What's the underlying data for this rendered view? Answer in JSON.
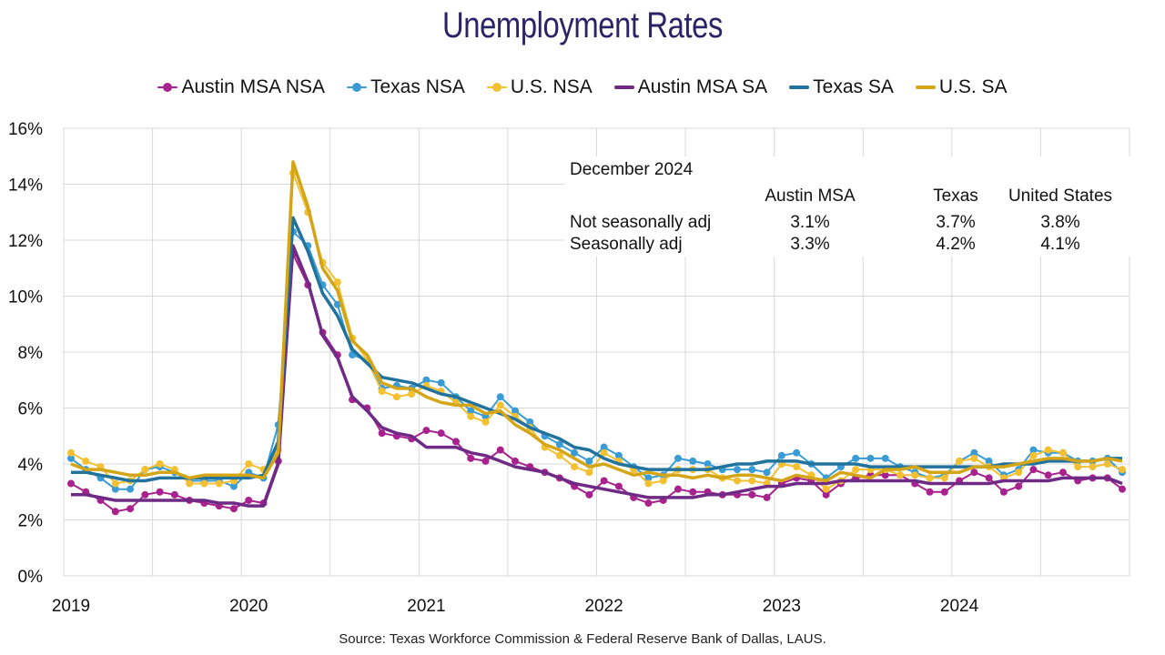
{
  "title": "Unemployment Rates",
  "source": "Source: Texas Workforce Commission & Federal Reserve Bank of Dallas, LAUS.",
  "summary_table": {
    "heading": "December 2024",
    "columns": [
      "Austin MSA",
      "Texas",
      "United States"
    ],
    "rows": [
      {
        "label": "Not seasonally adj",
        "values": [
          "3.1%",
          "3.7%",
          "3.8%"
        ]
      },
      {
        "label": "Seasonally adj",
        "values": [
          "3.3%",
          "4.2%",
          "4.1%"
        ]
      }
    ]
  },
  "chart_data": {
    "type": "line",
    "title": "Unemployment Rates",
    "xlabel": "",
    "ylabel": "",
    "ylim": [
      0,
      16
    ],
    "y_ticks": [
      "0%",
      "2%",
      "4%",
      "6%",
      "8%",
      "10%",
      "12%",
      "14%",
      "16%"
    ],
    "x_ticks": [
      "2019",
      "2020",
      "2021",
      "2022",
      "2023",
      "2024"
    ],
    "x_start": "2019-01",
    "x_end": "2024-12",
    "grid": true,
    "legend_position": "top",
    "series": [
      {
        "name": "Austin MSA NSA",
        "color": "#a8228e",
        "markers": true,
        "values": [
          3.3,
          3.0,
          2.7,
          2.3,
          2.4,
          2.9,
          3.0,
          2.9,
          2.7,
          2.6,
          2.5,
          2.4,
          2.7,
          2.6,
          4.1,
          11.5,
          10.4,
          8.7,
          7.9,
          6.3,
          6.0,
          5.1,
          5.0,
          4.9,
          5.2,
          5.1,
          4.8,
          4.2,
          4.1,
          4.5,
          4.1,
          3.9,
          3.7,
          3.5,
          3.2,
          2.9,
          3.4,
          3.2,
          2.8,
          2.6,
          2.7,
          3.1,
          3.0,
          3.0,
          2.9,
          2.9,
          2.9,
          2.8,
          3.3,
          3.5,
          3.4,
          2.9,
          3.3,
          3.5,
          3.6,
          3.6,
          3.6,
          3.3,
          3.0,
          3.0,
          3.4,
          3.7,
          3.5,
          3.0,
          3.2,
          3.8,
          3.6,
          3.7,
          3.4,
          3.5,
          3.5,
          3.1
        ]
      },
      {
        "name": "Texas NSA",
        "color": "#3a9bd5",
        "markers": true,
        "values": [
          4.2,
          3.8,
          3.5,
          3.1,
          3.1,
          3.8,
          3.9,
          3.7,
          3.4,
          3.4,
          3.4,
          3.2,
          3.7,
          3.5,
          5.4,
          12.3,
          11.8,
          10.4,
          9.7,
          7.9,
          7.7,
          6.7,
          6.8,
          6.7,
          7.0,
          6.9,
          6.4,
          5.9,
          5.7,
          6.4,
          5.9,
          5.5,
          5.0,
          4.7,
          4.4,
          4.1,
          4.6,
          4.3,
          3.9,
          3.5,
          3.6,
          4.2,
          4.1,
          4.0,
          3.8,
          3.8,
          3.8,
          3.7,
          4.3,
          4.4,
          4.0,
          3.5,
          3.9,
          4.2,
          4.2,
          4.2,
          3.9,
          3.7,
          3.5,
          3.6,
          4.1,
          4.4,
          4.1,
          3.6,
          3.8,
          4.5,
          4.4,
          4.4,
          4.1,
          4.1,
          4.2,
          3.7
        ]
      },
      {
        "name": "U.S. NSA",
        "color": "#f2c030",
        "markers": true,
        "values": [
          4.4,
          4.1,
          3.9,
          3.3,
          3.4,
          3.8,
          4.0,
          3.8,
          3.3,
          3.3,
          3.3,
          3.4,
          4.0,
          3.8,
          4.5,
          14.4,
          13.0,
          11.2,
          10.5,
          8.5,
          7.7,
          6.6,
          6.4,
          6.5,
          6.8,
          6.6,
          6.2,
          5.7,
          5.5,
          6.1,
          5.7,
          5.3,
          4.6,
          4.3,
          3.9,
          3.7,
          4.4,
          4.1,
          3.8,
          3.3,
          3.4,
          3.8,
          3.8,
          3.8,
          3.5,
          3.4,
          3.4,
          3.3,
          4.0,
          3.9,
          3.6,
          3.1,
          3.4,
          3.8,
          3.8,
          3.8,
          3.6,
          3.6,
          3.5,
          3.5,
          4.1,
          4.2,
          3.9,
          3.5,
          3.7,
          4.3,
          4.5,
          4.4,
          3.9,
          3.9,
          4.0,
          3.8
        ]
      },
      {
        "name": "Austin MSA SA",
        "color": "#6e2a85",
        "markers": false,
        "values": [
          2.9,
          2.9,
          2.8,
          2.7,
          2.7,
          2.7,
          2.7,
          2.7,
          2.7,
          2.7,
          2.6,
          2.6,
          2.5,
          2.5,
          4.0,
          11.8,
          10.5,
          8.6,
          7.8,
          6.4,
          5.9,
          5.3,
          5.1,
          5.0,
          4.6,
          4.6,
          4.6,
          4.4,
          4.3,
          4.1,
          3.9,
          3.8,
          3.7,
          3.5,
          3.3,
          3.2,
          3.1,
          3.0,
          2.9,
          2.8,
          2.8,
          2.8,
          2.8,
          2.9,
          2.9,
          3.0,
          3.1,
          3.2,
          3.2,
          3.3,
          3.3,
          3.3,
          3.4,
          3.4,
          3.4,
          3.4,
          3.4,
          3.4,
          3.3,
          3.3,
          3.3,
          3.3,
          3.3,
          3.4,
          3.4,
          3.4,
          3.4,
          3.5,
          3.5,
          3.5,
          3.5,
          3.3
        ]
      },
      {
        "name": "Texas SA",
        "color": "#21739e",
        "markers": false,
        "values": [
          3.7,
          3.7,
          3.6,
          3.5,
          3.4,
          3.4,
          3.5,
          3.5,
          3.5,
          3.5,
          3.5,
          3.5,
          3.5,
          3.6,
          4.8,
          12.8,
          11.6,
          10.1,
          9.3,
          8.1,
          7.6,
          7.1,
          7.0,
          6.9,
          6.7,
          6.5,
          6.4,
          6.2,
          6.0,
          5.8,
          5.6,
          5.3,
          5.1,
          4.9,
          4.6,
          4.5,
          4.2,
          4.0,
          3.9,
          3.8,
          3.8,
          3.8,
          3.8,
          3.8,
          3.9,
          4.0,
          4.0,
          4.1,
          4.1,
          4.1,
          4.0,
          4.0,
          4.0,
          4.0,
          3.9,
          3.9,
          3.9,
          3.9,
          3.9,
          3.9,
          3.9,
          3.9,
          3.9,
          4.0,
          4.0,
          4.0,
          4.1,
          4.1,
          4.1,
          4.1,
          4.2,
          4.2
        ]
      },
      {
        "name": "U.S. SA",
        "color": "#d4a517",
        "markers": false,
        "values": [
          4.0,
          3.8,
          3.8,
          3.7,
          3.6,
          3.6,
          3.7,
          3.7,
          3.5,
          3.6,
          3.6,
          3.6,
          3.6,
          3.5,
          4.4,
          14.8,
          13.2,
          11.0,
          10.2,
          8.4,
          7.9,
          6.9,
          6.7,
          6.7,
          6.4,
          6.2,
          6.1,
          6.1,
          5.8,
          5.9,
          5.4,
          5.1,
          4.7,
          4.5,
          4.2,
          3.9,
          4.0,
          3.8,
          3.6,
          3.7,
          3.6,
          3.6,
          3.5,
          3.6,
          3.5,
          3.6,
          3.6,
          3.5,
          3.4,
          3.6,
          3.5,
          3.4,
          3.7,
          3.6,
          3.5,
          3.8,
          3.8,
          3.9,
          3.7,
          3.7,
          3.7,
          3.9,
          3.9,
          3.9,
          4.0,
          4.1,
          4.2,
          4.2,
          4.1,
          4.1,
          4.2,
          4.1
        ]
      }
    ]
  }
}
